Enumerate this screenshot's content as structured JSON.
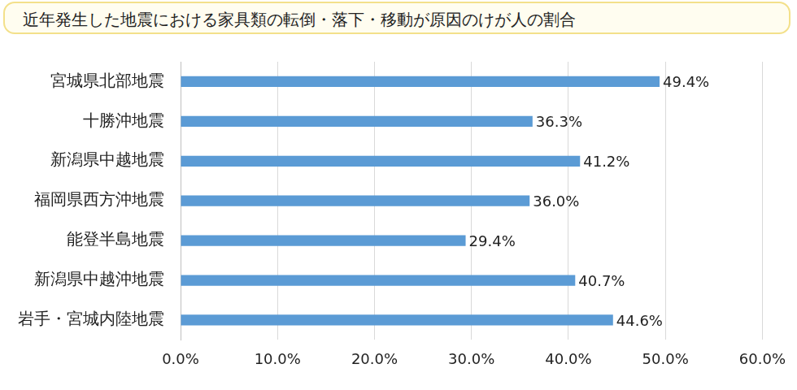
{
  "chart_data": {
    "type": "bar",
    "orientation": "horizontal",
    "title": "近年発生した地震における家具類の転倒・落下・移動が原因のけが人の割合",
    "categories": [
      "宮城県北部地震",
      "十勝沖地震",
      "新潟県中越地震",
      "福岡県西方沖地震",
      "能登半島地震",
      "新潟県中越沖地震",
      "岩手・宮城内陸地震"
    ],
    "values": [
      49.4,
      36.3,
      41.2,
      36.0,
      29.4,
      40.7,
      44.6
    ],
    "value_labels": [
      "49.4%",
      "36.3%",
      "41.2%",
      "36.0%",
      "29.4%",
      "40.7%",
      "44.6%"
    ],
    "color": "#5b9bd5",
    "xlim": [
      0,
      60
    ],
    "xticks": [
      {
        "value": 0,
        "label": "0.0%"
      },
      {
        "value": 10,
        "label": "10.0%"
      },
      {
        "value": 20,
        "label": "20.0%"
      },
      {
        "value": 30,
        "label": "30.0%"
      },
      {
        "value": 40,
        "label": "40.0%"
      },
      {
        "value": 50,
        "label": "50.0%"
      },
      {
        "value": 60,
        "label": "60.0%"
      }
    ],
    "grid": true,
    "data_labels": true
  }
}
